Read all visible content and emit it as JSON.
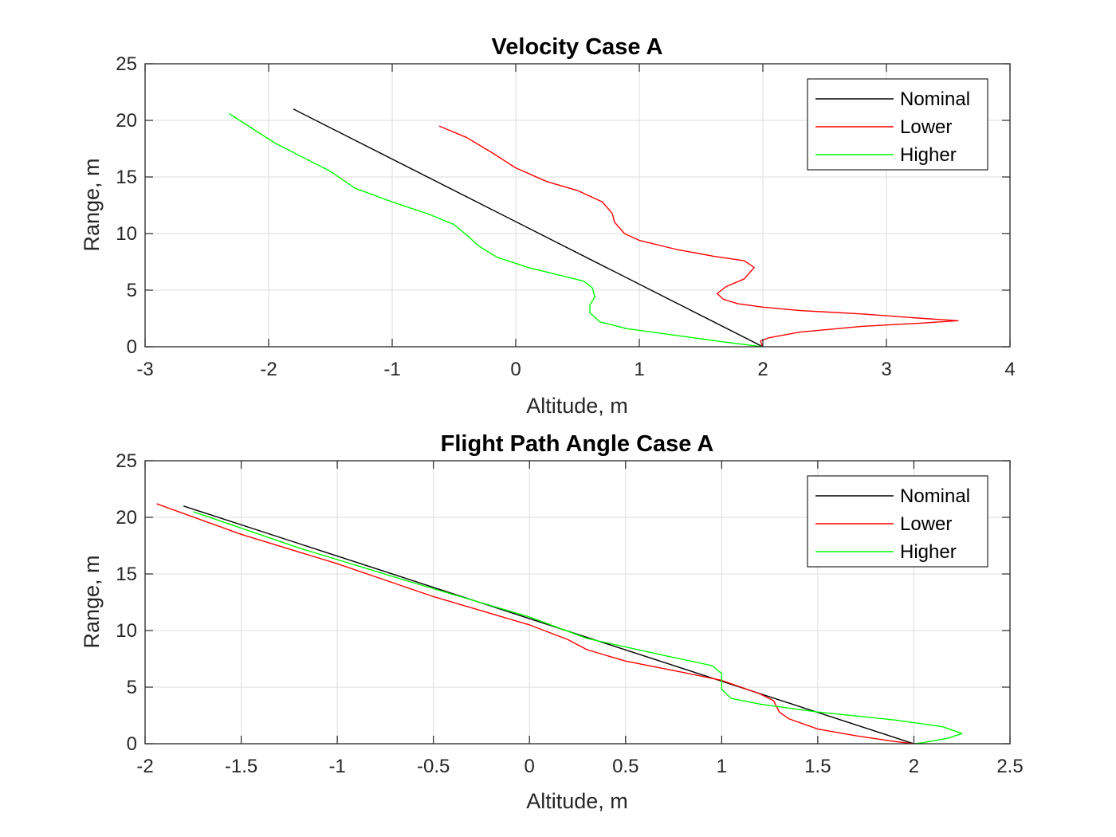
{
  "chart_data": [
    {
      "type": "line",
      "title": "Velocity Case A",
      "xlabel": "Altitude, m",
      "ylabel": "Range, m",
      "xlim": [
        -3,
        4
      ],
      "ylim": [
        0,
        25
      ],
      "xticks": [
        -3,
        -2,
        -1,
        0,
        1,
        2,
        3,
        4
      ],
      "yticks": [
        0,
        5,
        10,
        15,
        20,
        25
      ],
      "grid": true,
      "legend_position": "top-right",
      "series": [
        {
          "name": "Nominal",
          "color": "#000000",
          "x": [
            -1.8,
            2.0
          ],
          "y": [
            21.0,
            0.0
          ]
        },
        {
          "name": "Lower",
          "color": "#ff0000",
          "x": [
            -0.62,
            -0.4,
            -0.2,
            0.0,
            0.25,
            0.5,
            0.7,
            0.78,
            0.8,
            0.88,
            1.0,
            1.3,
            1.6,
            1.85,
            1.93,
            1.85,
            1.7,
            1.63,
            1.68,
            1.8,
            2.0,
            2.3,
            2.8,
            3.3,
            3.58,
            3.3,
            2.8,
            2.3,
            2.05,
            1.98,
            2.0
          ],
          "y": [
            19.5,
            18.5,
            17.2,
            15.8,
            14.6,
            13.8,
            12.8,
            11.8,
            11.0,
            10.0,
            9.4,
            8.6,
            8.0,
            7.6,
            7.0,
            6.0,
            5.3,
            4.7,
            4.2,
            3.8,
            3.5,
            3.2,
            2.9,
            2.5,
            2.3,
            2.1,
            1.8,
            1.3,
            0.8,
            0.5,
            0.0
          ]
        },
        {
          "name": "Higher",
          "color": "#00ff00",
          "x": [
            -2.32,
            -1.95,
            -1.5,
            -1.3,
            -1.0,
            -0.7,
            -0.5,
            -0.4,
            -0.3,
            -0.15,
            0.1,
            0.4,
            0.55,
            0.62,
            0.64,
            0.6,
            0.6,
            0.68,
            0.9,
            1.3,
            1.7,
            2.0
          ],
          "y": [
            20.6,
            18.0,
            15.5,
            14.0,
            12.8,
            11.7,
            10.8,
            9.9,
            8.9,
            7.9,
            7.0,
            6.2,
            5.8,
            5.2,
            4.4,
            3.7,
            3.0,
            2.2,
            1.6,
            1.0,
            0.4,
            0.0
          ]
        }
      ]
    },
    {
      "type": "line",
      "title": "Flight Path Angle Case A",
      "xlabel": "Altitude, m",
      "ylabel": "Range, m",
      "xlim": [
        -2,
        2.5
      ],
      "ylim": [
        0,
        25
      ],
      "xticks": [
        -2,
        -1.5,
        -1,
        -0.5,
        0,
        0.5,
        1,
        1.5,
        2,
        2.5
      ],
      "yticks": [
        0,
        5,
        10,
        15,
        20,
        25
      ],
      "grid": true,
      "legend_position": "top-right",
      "series": [
        {
          "name": "Nominal",
          "color": "#000000",
          "x": [
            -1.8,
            2.0
          ],
          "y": [
            21.0,
            0.0
          ]
        },
        {
          "name": "Lower",
          "color": "#ff0000",
          "x": [
            -1.94,
            -1.5,
            -1.0,
            -0.5,
            0.0,
            0.2,
            0.3,
            0.5,
            0.8,
            1.0,
            1.2,
            1.27,
            1.3,
            1.35,
            1.5,
            1.7,
            1.9,
            2.0
          ],
          "y": [
            21.2,
            18.5,
            15.9,
            13.0,
            10.5,
            9.2,
            8.3,
            7.3,
            6.3,
            5.6,
            4.4,
            3.8,
            2.8,
            2.2,
            1.3,
            0.7,
            0.2,
            0.0
          ]
        },
        {
          "name": "Higher",
          "color": "#00ff00",
          "x": [
            -1.75,
            -1.2,
            -0.6,
            0.0,
            0.3,
            0.7,
            0.95,
            1.0,
            1.0,
            1.05,
            1.2,
            1.5,
            1.9,
            2.15,
            2.25,
            2.18,
            2.05,
            2.0
          ],
          "y": [
            20.5,
            17.3,
            14.2,
            11.2,
            9.3,
            7.8,
            6.9,
            6.2,
            4.8,
            4.0,
            3.5,
            2.8,
            2.1,
            1.5,
            0.9,
            0.5,
            0.1,
            0.0
          ]
        }
      ]
    }
  ]
}
